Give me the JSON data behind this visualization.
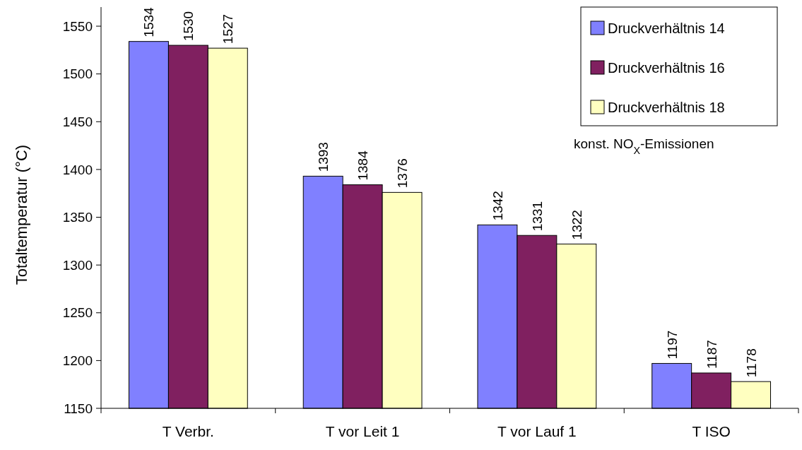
{
  "chart_data": {
    "type": "bar",
    "ylabel": "Totaltemperatur (°C)",
    "categories": [
      "T Verbr.",
      "T vor Leit 1",
      "T vor Lauf 1",
      "T ISO"
    ],
    "series": [
      {
        "name": "Druckverhältnis 14",
        "color": "#8080ff",
        "values": [
          1534,
          1393,
          1342,
          1197
        ]
      },
      {
        "name": "Druckverhältnis 16",
        "color": "#802060",
        "values": [
          1530,
          1384,
          1331,
          1187
        ]
      },
      {
        "name": "Druckverhältnis 18",
        "color": "#ffffc0",
        "values": [
          1527,
          1376,
          1322,
          1178
        ]
      }
    ],
    "ylim": [
      1150,
      1570
    ],
    "yticks": [
      1150,
      1200,
      1250,
      1300,
      1350,
      1400,
      1450,
      1500,
      1550
    ],
    "data_labels": true,
    "legend": "top right",
    "grid": false,
    "annotations": [
      "konst. NO$_{X}$-Emissionen"
    ]
  }
}
